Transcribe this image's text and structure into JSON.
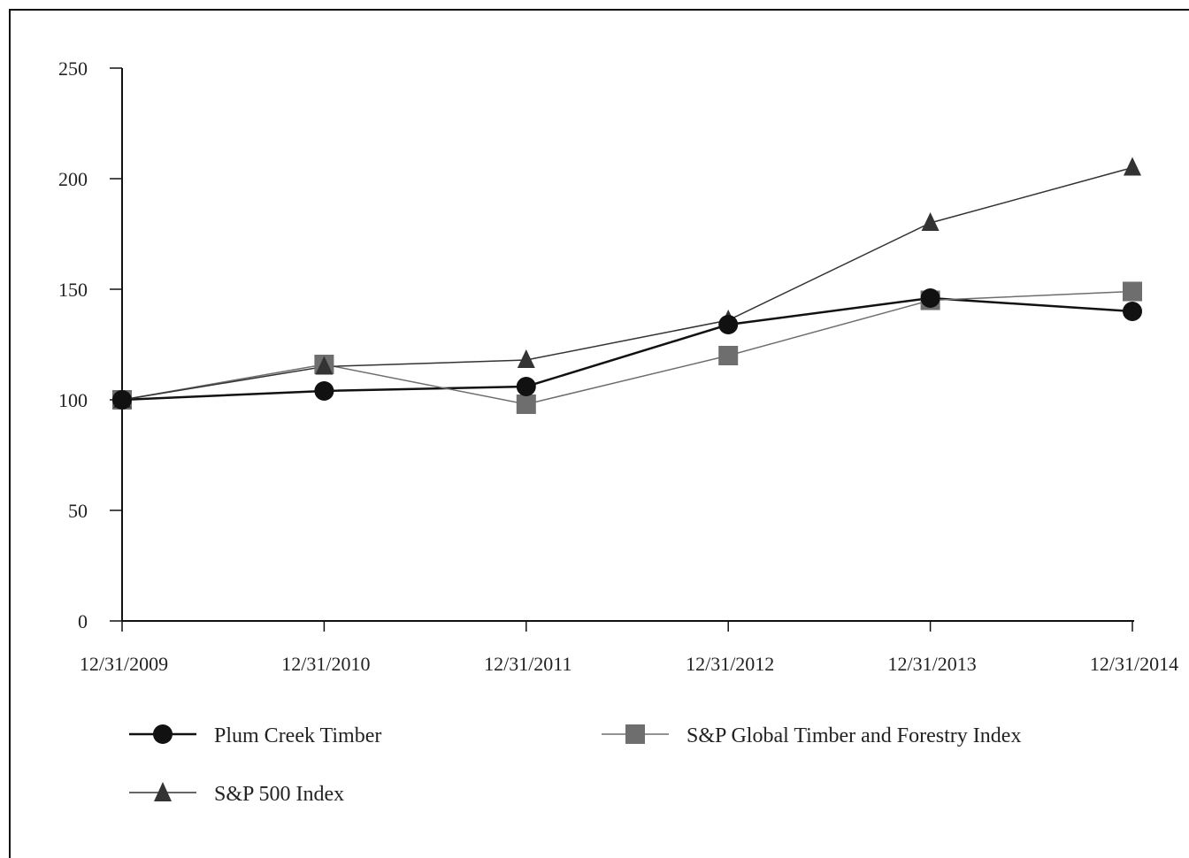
{
  "chart_data": {
    "type": "line",
    "title": "",
    "xlabel": "",
    "ylabel": "",
    "categories": [
      "12/31/2009",
      "12/31/2010",
      "12/31/2011",
      "12/31/2012",
      "12/31/2013",
      "12/31/2014"
    ],
    "ylim": [
      0,
      250
    ],
    "yticks": [
      "0",
      "50",
      "100",
      "150",
      "200",
      "250"
    ],
    "grid": false,
    "legend_position": "bottom",
    "series": [
      {
        "name": "Plum Creek Timber",
        "values": [
          100,
          104,
          106,
          134,
          146,
          140
        ],
        "marker": "circle",
        "color": "#111111"
      },
      {
        "name": "S&P Global Timber and Forestry Index",
        "values": [
          100,
          116,
          98,
          120,
          145,
          149
        ],
        "marker": "square",
        "color": "#6e6e6e"
      },
      {
        "name": "S&P 500 Index",
        "values": [
          100,
          115,
          118,
          136,
          180,
          205
        ],
        "marker": "triangle",
        "color": "#333333"
      }
    ]
  }
}
